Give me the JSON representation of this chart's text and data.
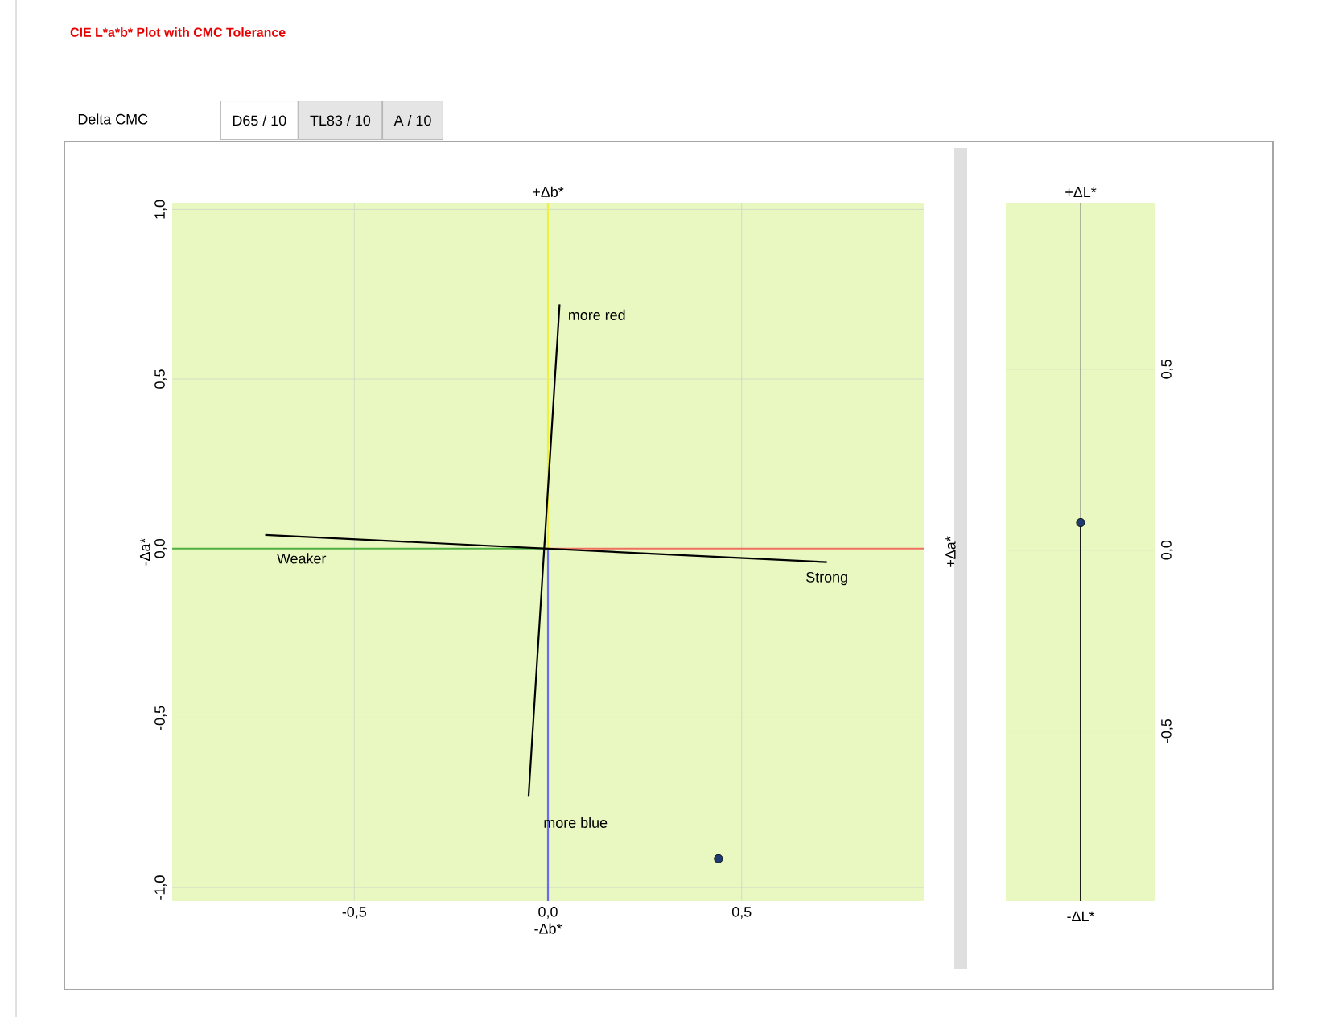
{
  "chart_data": [
    {
      "type": "scatter",
      "title": "CIE L*a*b* Plot with CMC Tolerance",
      "xlabel": "-Δb*",
      "x2label": "+Δb*",
      "ylabel": "-Δa*",
      "y2label": "+Δa*",
      "annotations": [
        "Delta CMC",
        "D65 / 10",
        "TL83 / 10",
        "A / 10",
        {
          "text": "more red",
          "x": 0.03,
          "y": 0.72
        },
        {
          "text": "more blue",
          "x": -0.05,
          "y": -0.73
        },
        {
          "text": "Weaker",
          "x": -0.73,
          "y": 0.04
        },
        {
          "text": "Strong",
          "x": 0.72,
          "y": -0.04
        }
      ],
      "xlim": [
        -0.97,
        0.97
      ],
      "ylim": [
        -1.04,
        1.02
      ],
      "xticks": [
        {
          "value": -0.5,
          "label": "-0,5"
        },
        {
          "value": 0,
          "label": "0,0"
        },
        {
          "value": 0.5,
          "label": "0,5"
        }
      ],
      "yticks": [
        {
          "value": -1,
          "label": "-1,0"
        },
        {
          "value": -0.5,
          "label": "-0,5"
        },
        {
          "value": 0,
          "label": "0,0"
        },
        {
          "value": 0.5,
          "label": "0,5"
        },
        {
          "value": 1,
          "label": "1,0"
        }
      ],
      "grid": true,
      "line_style": "solid",
      "series": [
        {
          "type": "line",
          "color": "#f0f040",
          "x": [
            0,
            0
          ],
          "values": [
            0,
            1.02
          ]
        },
        {
          "type": "line",
          "color": "#6b6bf0",
          "x": [
            0,
            0
          ],
          "values": [
            -1.04,
            0
          ]
        },
        {
          "type": "line",
          "color": "#f07060",
          "x": [
            0,
            0.97
          ],
          "values": [
            0,
            0
          ]
        },
        {
          "type": "line",
          "color": "#50b040",
          "x": [
            -0.97,
            0
          ],
          "values": [
            0,
            0
          ]
        },
        {
          "type": "line",
          "color": "#000000",
          "x": [
            0.03,
            -0.05
          ],
          "values": [
            0.72,
            -0.73
          ]
        },
        {
          "type": "line",
          "color": "#000000",
          "x": [
            -0.73,
            0.72
          ],
          "values": [
            0.04,
            -0.04
          ]
        },
        {
          "color": "#1f3a6e",
          "marker": "circle",
          "x": [
            0.44
          ],
          "values": [
            -0.915
          ]
        }
      ]
    },
    {
      "type": "scatter",
      "xlabel": "-ΔL*",
      "x2label": "+ΔL*",
      "categories": [
        null
      ],
      "ylim": [
        -0.97,
        0.96
      ],
      "yticks": [
        {
          "value": -0.5,
          "label": "-0,5"
        },
        {
          "value": 0,
          "label": "0,0"
        },
        {
          "value": 0.5,
          "label": "0,5"
        }
      ],
      "grid": "y",
      "tick_labels": "y",
      "marker": "circle",
      "series": [
        {
          "color": "#1f3a6e",
          "values": [
            0.076
          ]
        }
      ]
    }
  ]
}
